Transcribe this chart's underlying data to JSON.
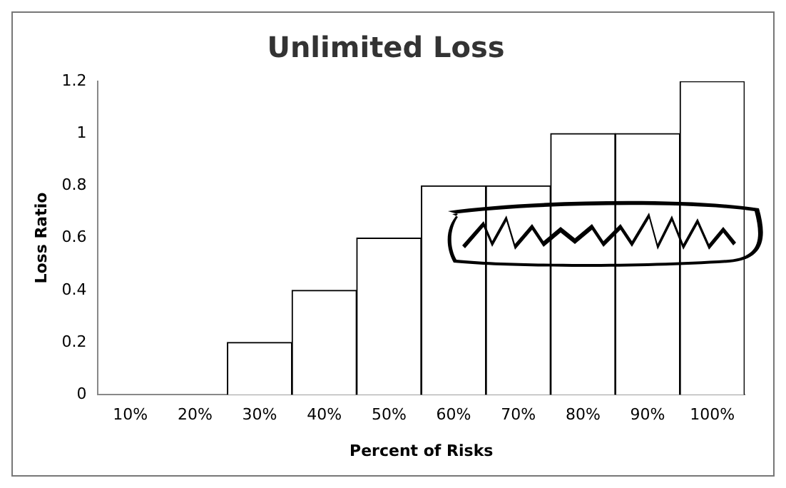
{
  "chart_data": {
    "type": "bar",
    "title": "Unlimited Loss",
    "xlabel": "Percent of Risks",
    "ylabel": "Loss Ratio",
    "categories": [
      "10%",
      "20%",
      "30%",
      "40%",
      "50%",
      "60%",
      "70%",
      "80%",
      "90%",
      "100%"
    ],
    "values": [
      0,
      0,
      0.2,
      0.4,
      0.6,
      0.8,
      0.8,
      1,
      1,
      1.2
    ],
    "color": "#ffffff",
    "ylim": [
      0,
      1.2
    ],
    "yticks": [
      0,
      0.2,
      0.4,
      0.6,
      0.8,
      1,
      1.2
    ],
    "grid": false,
    "legend": false
  }
}
